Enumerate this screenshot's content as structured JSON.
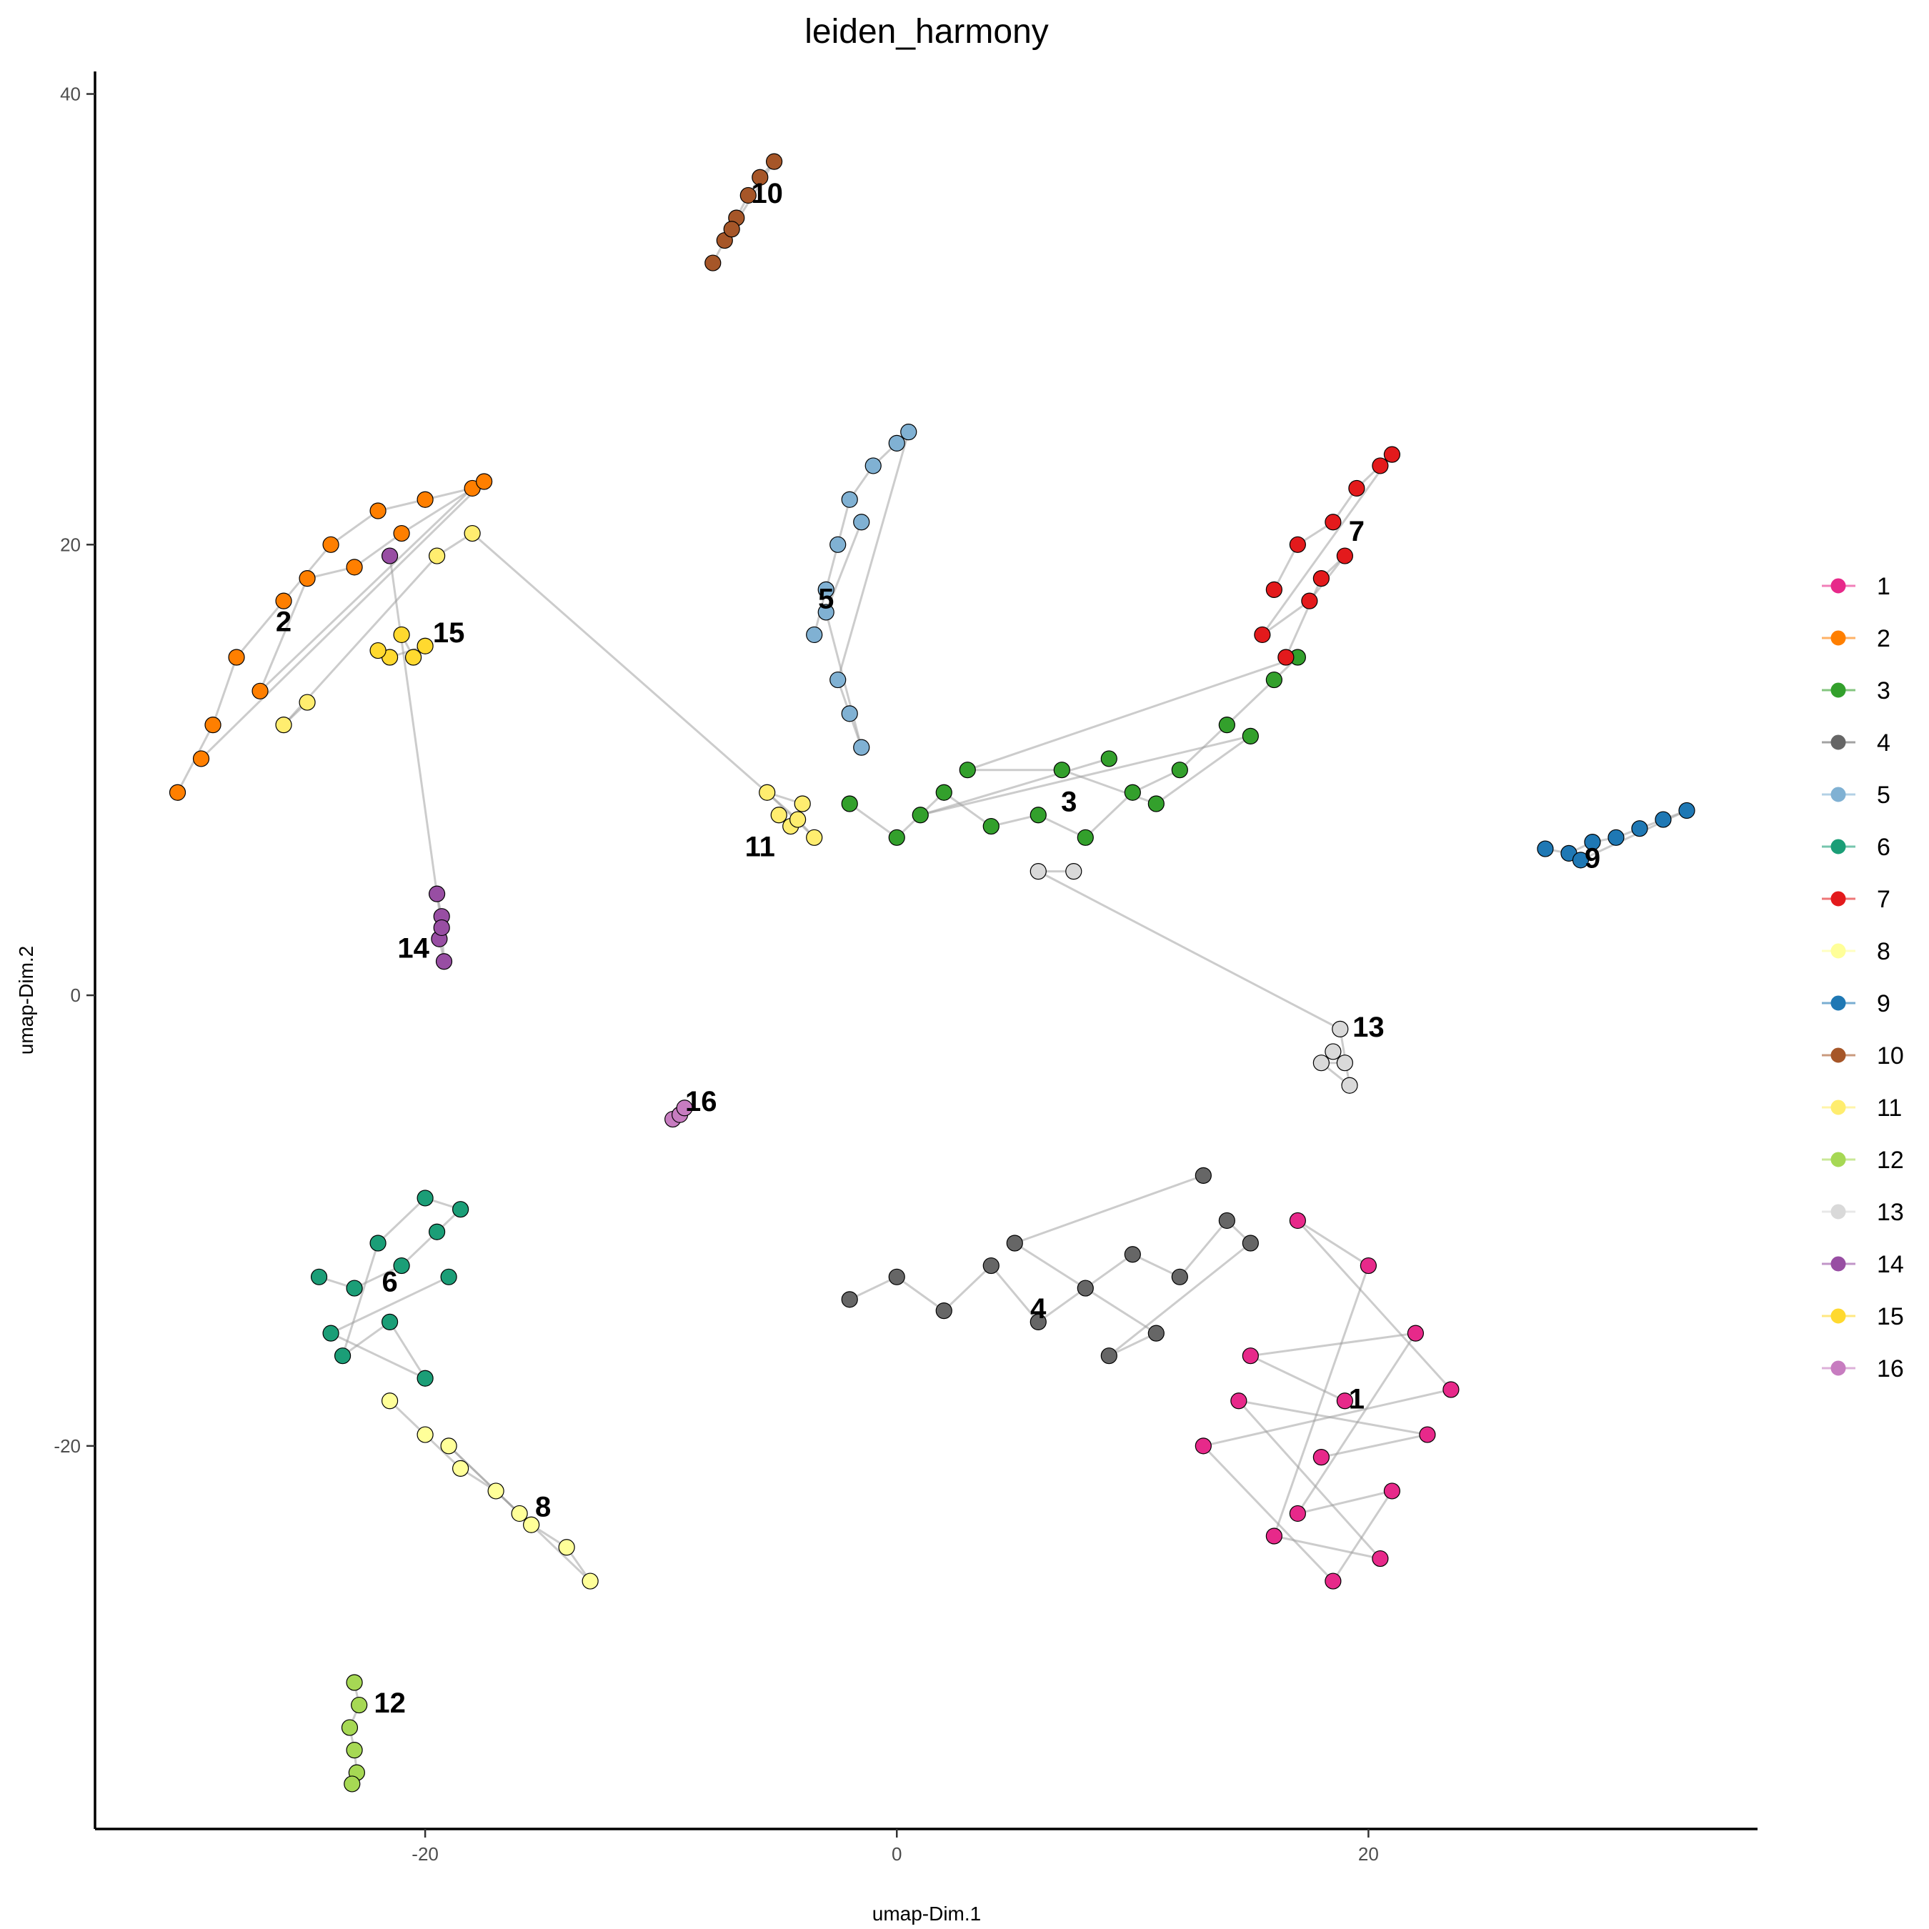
{
  "chart_data": {
    "type": "scatter",
    "title": "leiden_harmony",
    "xlabel": "umap-Dim.1",
    "ylabel": "umap-Dim.2",
    "xlim": [
      -34.0,
      36.5
    ],
    "ylim": [
      -37.0,
      41.0
    ],
    "x_ticks": [
      -20,
      0,
      20
    ],
    "y_ticks": [
      40,
      20,
      0,
      -20
    ],
    "x_tick_labels": [
      "-20",
      "0",
      "20"
    ],
    "y_tick_labels": [
      "40",
      "20",
      "0",
      "-20"
    ],
    "grid": false,
    "legend_position": "right",
    "legend": [
      "1",
      "2",
      "3",
      "4",
      "5",
      "6",
      "7",
      "8",
      "9",
      "10",
      "11",
      "12",
      "13",
      "14",
      "15",
      "16"
    ],
    "series": [
      {
        "name": "1",
        "color": "#E7298A",
        "points": [
          [
            19.0,
            -18.0
          ],
          [
            15.0,
            -16.0
          ],
          [
            22.0,
            -15.0
          ],
          [
            17.0,
            -23.0
          ],
          [
            21.0,
            -22.0
          ],
          [
            18.5,
            -26.0
          ],
          [
            13.0,
            -20.0
          ],
          [
            23.5,
            -17.5
          ],
          [
            17.0,
            -10.0
          ],
          [
            20.0,
            -12.0
          ],
          [
            16.0,
            -24.0
          ],
          [
            20.5,
            -25.0
          ],
          [
            14.5,
            -18.0
          ],
          [
            22.5,
            -19.5
          ],
          [
            18.0,
            -20.5
          ]
        ]
      },
      {
        "name": "2",
        "color": "#FF7F00",
        "points": [
          [
            -30.5,
            9.0
          ],
          [
            -29.0,
            12.0
          ],
          [
            -28.0,
            15.0
          ],
          [
            -26.0,
            17.5
          ],
          [
            -24.0,
            20.0
          ],
          [
            -22.0,
            21.5
          ],
          [
            -20.0,
            22.0
          ],
          [
            -18.0,
            22.5
          ],
          [
            -27.0,
            13.5
          ],
          [
            -25.0,
            18.5
          ],
          [
            -23.0,
            19.0
          ],
          [
            -21.0,
            20.5
          ],
          [
            -17.5,
            22.8
          ],
          [
            -29.5,
            10.5
          ]
        ]
      },
      {
        "name": "3",
        "color": "#33A02C",
        "points": [
          [
            -2.0,
            8.5
          ],
          [
            0.0,
            7.0
          ],
          [
            2.0,
            9.0
          ],
          [
            4.0,
            7.5
          ],
          [
            6.0,
            8.0
          ],
          [
            8.0,
            7.0
          ],
          [
            10.0,
            9.0
          ],
          [
            12.0,
            10.0
          ],
          [
            14.0,
            12.0
          ],
          [
            16.0,
            14.0
          ],
          [
            17.0,
            15.0
          ],
          [
            3.0,
            10.0
          ],
          [
            7.0,
            10.0
          ],
          [
            11.0,
            8.5
          ],
          [
            15.0,
            11.5
          ],
          [
            1.0,
            8.0
          ],
          [
            9.0,
            10.5
          ]
        ]
      },
      {
        "name": "4",
        "color": "#666666",
        "points": [
          [
            -2.0,
            -13.5
          ],
          [
            0.0,
            -12.5
          ],
          [
            2.0,
            -14.0
          ],
          [
            4.0,
            -12.0
          ],
          [
            6.0,
            -14.5
          ],
          [
            8.0,
            -13.0
          ],
          [
            10.0,
            -11.5
          ],
          [
            12.0,
            -12.5
          ],
          [
            14.0,
            -10.0
          ],
          [
            15.0,
            -11.0
          ],
          [
            9.0,
            -16.0
          ],
          [
            11.0,
            -15.0
          ],
          [
            5.0,
            -11.0
          ],
          [
            13.0,
            -8.0
          ]
        ]
      },
      {
        "name": "5",
        "color": "#80B1D3",
        "points": [
          [
            -3.5,
            16.0
          ],
          [
            -3.0,
            18.0
          ],
          [
            -2.5,
            20.0
          ],
          [
            -2.0,
            22.0
          ],
          [
            -1.0,
            23.5
          ],
          [
            0.0,
            24.5
          ],
          [
            0.5,
            25.0
          ],
          [
            -2.5,
            14.0
          ],
          [
            -2.0,
            12.5
          ],
          [
            -1.5,
            11.0
          ],
          [
            -3.0,
            17.0
          ],
          [
            -1.5,
            21.0
          ]
        ]
      },
      {
        "name": "6",
        "color": "#1B9E77",
        "points": [
          [
            -24.5,
            -12.5
          ],
          [
            -23.0,
            -13.0
          ],
          [
            -21.0,
            -12.0
          ],
          [
            -19.5,
            -10.5
          ],
          [
            -18.5,
            -9.5
          ],
          [
            -20.0,
            -9.0
          ],
          [
            -22.0,
            -11.0
          ],
          [
            -23.5,
            -16.0
          ],
          [
            -21.5,
            -14.5
          ],
          [
            -20.0,
            -17.0
          ],
          [
            -24.0,
            -15.0
          ],
          [
            -19.0,
            -12.5
          ]
        ]
      },
      {
        "name": "7",
        "color": "#E31A1C",
        "points": [
          [
            16.0,
            18.0
          ],
          [
            17.0,
            20.0
          ],
          [
            18.5,
            21.0
          ],
          [
            19.5,
            22.5
          ],
          [
            20.5,
            23.5
          ],
          [
            21.0,
            24.0
          ],
          [
            15.5,
            16.0
          ],
          [
            17.5,
            17.5
          ],
          [
            19.0,
            19.5
          ],
          [
            18.0,
            18.5
          ],
          [
            16.5,
            15.0
          ]
        ]
      },
      {
        "name": "8",
        "color": "#FFFF99",
        "points": [
          [
            -21.5,
            -18.0
          ],
          [
            -20.0,
            -19.5
          ],
          [
            -18.5,
            -21.0
          ],
          [
            -17.0,
            -22.0
          ],
          [
            -15.5,
            -23.5
          ],
          [
            -14.0,
            -24.5
          ],
          [
            -13.0,
            -26.0
          ],
          [
            -19.0,
            -20.0
          ],
          [
            -16.0,
            -23.0
          ]
        ]
      },
      {
        "name": "9",
        "color": "#1F78B4",
        "points": [
          [
            27.5,
            6.5
          ],
          [
            28.5,
            6.3
          ],
          [
            29.5,
            6.8
          ],
          [
            30.5,
            7.0
          ],
          [
            31.5,
            7.4
          ],
          [
            32.5,
            7.8
          ],
          [
            33.5,
            8.2
          ],
          [
            29.0,
            6.0
          ]
        ]
      },
      {
        "name": "10",
        "color": "#A65628",
        "points": [
          [
            -7.8,
            32.5
          ],
          [
            -7.3,
            33.5
          ],
          [
            -6.8,
            34.5
          ],
          [
            -6.3,
            35.5
          ],
          [
            -5.8,
            36.3
          ],
          [
            -5.2,
            37.0
          ],
          [
            -7.0,
            34.0
          ]
        ]
      },
      {
        "name": "11",
        "color": "#FFED6F",
        "points": [
          [
            -5.0,
            8.0
          ],
          [
            -4.5,
            7.5
          ],
          [
            -4.0,
            8.5
          ],
          [
            -5.5,
            9.0
          ],
          [
            -3.5,
            7.0
          ],
          [
            -4.2,
            7.8
          ],
          [
            -18.0,
            20.5
          ],
          [
            -19.5,
            19.5
          ],
          [
            -26.0,
            12.0
          ],
          [
            -25.0,
            13.0
          ]
        ]
      },
      {
        "name": "12",
        "color": "#A6D854",
        "points": [
          [
            -23.0,
            -30.5
          ],
          [
            -22.8,
            -31.5
          ],
          [
            -23.2,
            -32.5
          ],
          [
            -23.0,
            -33.5
          ],
          [
            -22.9,
            -34.5
          ],
          [
            -23.1,
            -35.0
          ]
        ]
      },
      {
        "name": "13",
        "color": "#D9D9D9",
        "points": [
          [
            18.5,
            -2.5
          ],
          [
            19.0,
            -3.0
          ],
          [
            18.0,
            -3.0
          ],
          [
            19.2,
            -4.0
          ],
          [
            18.8,
            -1.5
          ],
          [
            6.0,
            5.5
          ],
          [
            7.5,
            5.5
          ]
        ]
      },
      {
        "name": "14",
        "color": "#984EA3",
        "points": [
          [
            -19.5,
            4.5
          ],
          [
            -19.3,
            3.5
          ],
          [
            -19.4,
            2.5
          ],
          [
            -19.2,
            1.5
          ],
          [
            -19.3,
            3.0
          ],
          [
            -21.5,
            19.5
          ]
        ]
      },
      {
        "name": "15",
        "color": "#FFD92F",
        "points": [
          [
            -21.0,
            16.0
          ],
          [
            -20.5,
            15.0
          ],
          [
            -20.0,
            15.5
          ],
          [
            -21.5,
            15.0
          ],
          [
            -22.0,
            15.3
          ]
        ]
      },
      {
        "name": "16",
        "color": "#C77CC0",
        "points": [
          [
            -9.5,
            -5.5
          ],
          [
            -9.2,
            -5.3
          ],
          [
            -9.0,
            -5.0
          ]
        ]
      }
    ],
    "cluster_labels": [
      {
        "text": "1",
        "x": 19.5,
        "y": -18.0
      },
      {
        "text": "2",
        "x": -26.0,
        "y": 16.5
      },
      {
        "text": "3",
        "x": 7.3,
        "y": 8.5
      },
      {
        "text": "4",
        "x": 6.0,
        "y": -14.0
      },
      {
        "text": "5",
        "x": -3.0,
        "y": 17.5
      },
      {
        "text": "6",
        "x": -21.5,
        "y": -12.8
      },
      {
        "text": "7",
        "x": 19.5,
        "y": 20.5
      },
      {
        "text": "8",
        "x": -15.0,
        "y": -22.8
      },
      {
        "text": "9",
        "x": 29.5,
        "y": 6.0
      },
      {
        "text": "10",
        "x": -5.5,
        "y": 35.5
      },
      {
        "text": "11",
        "x": -5.8,
        "y": 6.5
      },
      {
        "text": "12",
        "x": -21.5,
        "y": -31.5
      },
      {
        "text": "13",
        "x": 20.0,
        "y": -1.5
      },
      {
        "text": "14",
        "x": -20.5,
        "y": 2.0
      },
      {
        "text": "15",
        "x": -19.0,
        "y": 16.0
      },
      {
        "text": "16",
        "x": -8.3,
        "y": -4.8
      }
    ]
  }
}
